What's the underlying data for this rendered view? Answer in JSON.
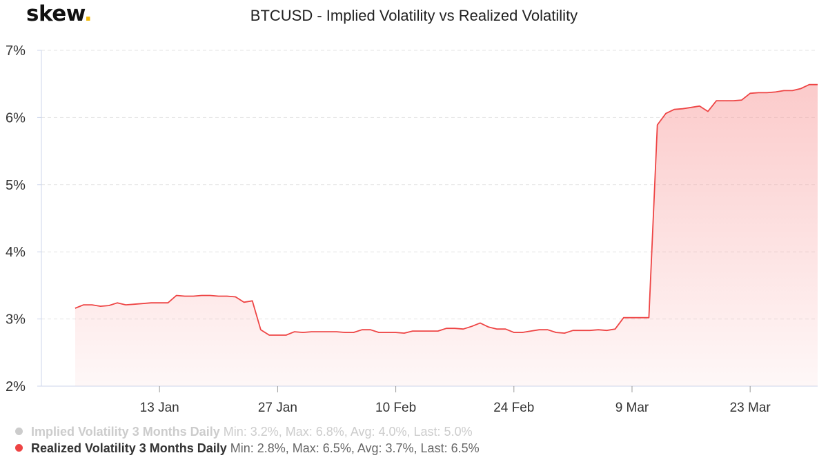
{
  "logo": {
    "text": "skew",
    "dot": "."
  },
  "chart_data": {
    "type": "area",
    "title": "BTCUSD - Implied Volatility vs Realized Volatility",
    "xlabel": "",
    "ylabel": "",
    "x_range": [
      "2019-12-30",
      "2020-03-31"
    ],
    "ylim": [
      2,
      7
    ],
    "yticks": [
      2,
      3,
      4,
      5,
      6,
      7
    ],
    "ytick_labels": [
      "2%",
      "3%",
      "4%",
      "5%",
      "6%",
      "7%"
    ],
    "xticks": [
      "2020-01-13",
      "2020-01-27",
      "2020-02-10",
      "2020-02-24",
      "2020-03-09",
      "2020-03-23"
    ],
    "xtick_labels": [
      "13 Jan",
      "27 Jan",
      "10 Feb",
      "24 Feb",
      "9 Mar",
      "23 Mar"
    ],
    "grid": "horizontal-dashed",
    "legend_position": "bottom-left",
    "series": [
      {
        "name": "Implied Volatility 3 Months Daily",
        "stats": "Min: 3.2%, Max: 6.8%, Avg: 4.0%, Last: 5.0%",
        "visible": false,
        "color": "#cccccc",
        "points": []
      },
      {
        "name": "Realized Volatility 3 Months Daily",
        "stats": "Min: 2.8%, Max: 6.5%, Avg: 3.7%, Last: 6.5%",
        "visible": true,
        "color": "#ee4444",
        "fill_color": "#f8a0a0",
        "points": [
          [
            "2020-01-03",
            3.16
          ],
          [
            "2020-01-04",
            3.21
          ],
          [
            "2020-01-05",
            3.21
          ],
          [
            "2020-01-06",
            3.19
          ],
          [
            "2020-01-07",
            3.2
          ],
          [
            "2020-01-08",
            3.24
          ],
          [
            "2020-01-09",
            3.21
          ],
          [
            "2020-01-10",
            3.22
          ],
          [
            "2020-01-11",
            3.23
          ],
          [
            "2020-01-12",
            3.24
          ],
          [
            "2020-01-13",
            3.24
          ],
          [
            "2020-01-14",
            3.24
          ],
          [
            "2020-01-15",
            3.35
          ],
          [
            "2020-01-16",
            3.34
          ],
          [
            "2020-01-17",
            3.34
          ],
          [
            "2020-01-18",
            3.35
          ],
          [
            "2020-01-19",
            3.35
          ],
          [
            "2020-01-20",
            3.34
          ],
          [
            "2020-01-21",
            3.34
          ],
          [
            "2020-01-22",
            3.33
          ],
          [
            "2020-01-23",
            3.25
          ],
          [
            "2020-01-24",
            3.27
          ],
          [
            "2020-01-25",
            2.84
          ],
          [
            "2020-01-26",
            2.76
          ],
          [
            "2020-01-27",
            2.76
          ],
          [
            "2020-01-28",
            2.76
          ],
          [
            "2020-01-29",
            2.81
          ],
          [
            "2020-01-30",
            2.8
          ],
          [
            "2020-01-31",
            2.81
          ],
          [
            "2020-02-01",
            2.81
          ],
          [
            "2020-02-02",
            2.81
          ],
          [
            "2020-02-03",
            2.81
          ],
          [
            "2020-02-04",
            2.8
          ],
          [
            "2020-02-05",
            2.8
          ],
          [
            "2020-02-06",
            2.84
          ],
          [
            "2020-02-07",
            2.84
          ],
          [
            "2020-02-08",
            2.8
          ],
          [
            "2020-02-09",
            2.8
          ],
          [
            "2020-02-10",
            2.8
          ],
          [
            "2020-02-11",
            2.79
          ],
          [
            "2020-02-12",
            2.82
          ],
          [
            "2020-02-13",
            2.82
          ],
          [
            "2020-02-14",
            2.82
          ],
          [
            "2020-02-15",
            2.82
          ],
          [
            "2020-02-16",
            2.86
          ],
          [
            "2020-02-17",
            2.86
          ],
          [
            "2020-02-18",
            2.85
          ],
          [
            "2020-02-19",
            2.89
          ],
          [
            "2020-02-20",
            2.94
          ],
          [
            "2020-02-21",
            2.88
          ],
          [
            "2020-02-22",
            2.85
          ],
          [
            "2020-02-23",
            2.85
          ],
          [
            "2020-02-24",
            2.8
          ],
          [
            "2020-02-25",
            2.8
          ],
          [
            "2020-02-26",
            2.82
          ],
          [
            "2020-02-27",
            2.84
          ],
          [
            "2020-02-28",
            2.84
          ],
          [
            "2020-02-29",
            2.8
          ],
          [
            "2020-03-01",
            2.79
          ],
          [
            "2020-03-02",
            2.83
          ],
          [
            "2020-03-03",
            2.83
          ],
          [
            "2020-03-04",
            2.83
          ],
          [
            "2020-03-05",
            2.84
          ],
          [
            "2020-03-06",
            2.83
          ],
          [
            "2020-03-07",
            2.85
          ],
          [
            "2020-03-08",
            3.02
          ],
          [
            "2020-03-09",
            3.02
          ],
          [
            "2020-03-10",
            3.02
          ],
          [
            "2020-03-11",
            3.02
          ],
          [
            "2020-03-12",
            5.89
          ],
          [
            "2020-03-13",
            6.06
          ],
          [
            "2020-03-14",
            6.12
          ],
          [
            "2020-03-15",
            6.13
          ],
          [
            "2020-03-16",
            6.15
          ],
          [
            "2020-03-17",
            6.17
          ],
          [
            "2020-03-18",
            6.09
          ],
          [
            "2020-03-19",
            6.25
          ],
          [
            "2020-03-20",
            6.25
          ],
          [
            "2020-03-21",
            6.25
          ],
          [
            "2020-03-22",
            6.26
          ],
          [
            "2020-03-23",
            6.36
          ],
          [
            "2020-03-24",
            6.37
          ],
          [
            "2020-03-25",
            6.37
          ],
          [
            "2020-03-26",
            6.38
          ],
          [
            "2020-03-27",
            6.4
          ],
          [
            "2020-03-28",
            6.4
          ],
          [
            "2020-03-29",
            6.43
          ],
          [
            "2020-03-30",
            6.49
          ],
          [
            "2020-03-31",
            6.49
          ]
        ]
      }
    ]
  }
}
